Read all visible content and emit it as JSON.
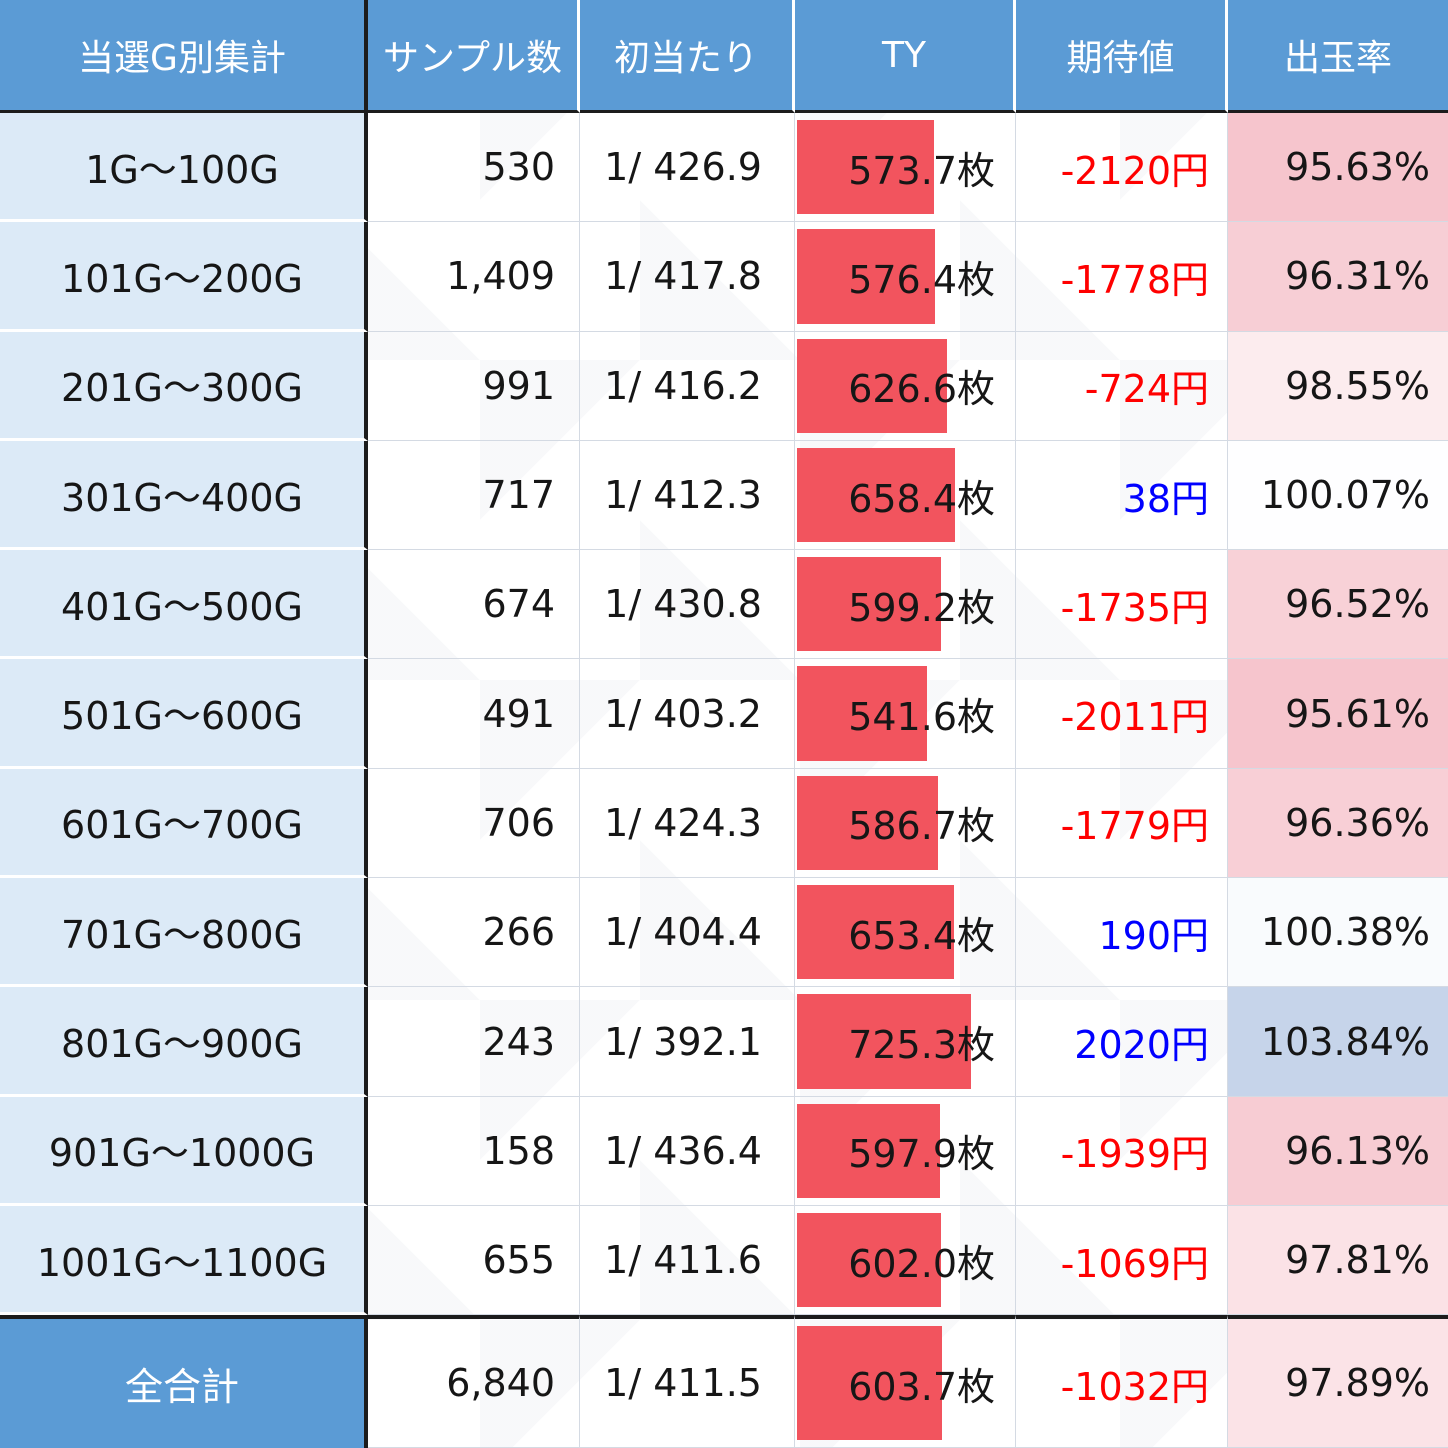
{
  "table": {
    "columns": [
      "当選G別集計",
      "サンプル数",
      "初当たり",
      "TY",
      "期待値",
      "出玉率"
    ],
    "rows": [
      {
        "label": "1G〜100G",
        "samples": "530",
        "first_hit": "1/ 426.9",
        "ty_value": 573.7,
        "ty_label": "573.7枚",
        "expectation": "-2120円",
        "payout_value": 95.63,
        "payout_label": "95.63%"
      },
      {
        "label": "101G〜200G",
        "samples": "1,409",
        "first_hit": "1/ 417.8",
        "ty_value": 576.4,
        "ty_label": "576.4枚",
        "expectation": "-1778円",
        "payout_value": 96.31,
        "payout_label": "96.31%"
      },
      {
        "label": "201G〜300G",
        "samples": "991",
        "first_hit": "1/ 416.2",
        "ty_value": 626.6,
        "ty_label": "626.6枚",
        "expectation": "-724円",
        "payout_value": 98.55,
        "payout_label": "98.55%"
      },
      {
        "label": "301G〜400G",
        "samples": "717",
        "first_hit": "1/ 412.3",
        "ty_value": 658.4,
        "ty_label": "658.4枚",
        "expectation": "38円",
        "payout_value": 100.07,
        "payout_label": "100.07%"
      },
      {
        "label": "401G〜500G",
        "samples": "674",
        "first_hit": "1/ 430.8",
        "ty_value": 599.2,
        "ty_label": "599.2枚",
        "expectation": "-1735円",
        "payout_value": 96.52,
        "payout_label": "96.52%"
      },
      {
        "label": "501G〜600G",
        "samples": "491",
        "first_hit": "1/ 403.2",
        "ty_value": 541.6,
        "ty_label": "541.6枚",
        "expectation": "-2011円",
        "payout_value": 95.61,
        "payout_label": "95.61%"
      },
      {
        "label": "601G〜700G",
        "samples": "706",
        "first_hit": "1/ 424.3",
        "ty_value": 586.7,
        "ty_label": "586.7枚",
        "expectation": "-1779円",
        "payout_value": 96.36,
        "payout_label": "96.36%"
      },
      {
        "label": "701G〜800G",
        "samples": "266",
        "first_hit": "1/ 404.4",
        "ty_value": 653.4,
        "ty_label": "653.4枚",
        "expectation": "190円",
        "payout_value": 100.38,
        "payout_label": "100.38%"
      },
      {
        "label": "801G〜900G",
        "samples": "243",
        "first_hit": "1/ 392.1",
        "ty_value": 725.3,
        "ty_label": "725.3枚",
        "expectation": "2020円",
        "payout_value": 103.84,
        "payout_label": "103.84%"
      },
      {
        "label": "901G〜1000G",
        "samples": "158",
        "first_hit": "1/ 436.4",
        "ty_value": 597.9,
        "ty_label": "597.9枚",
        "expectation": "-1939円",
        "payout_value": 96.13,
        "payout_label": "96.13%"
      },
      {
        "label": "1001G〜1100G",
        "samples": "655",
        "first_hit": "1/ 411.6",
        "ty_value": 602.0,
        "ty_label": "602.0枚",
        "expectation": "-1069円",
        "payout_value": 97.81,
        "payout_label": "97.81%"
      }
    ],
    "total": {
      "label": "全合計",
      "samples": "6,840",
      "first_hit": "1/ 411.5",
      "ty_value": 603.7,
      "ty_label": "603.7枚",
      "expectation": "-1032円",
      "payout_value": 97.89,
      "payout_label": "97.89%"
    },
    "ty_bar": {
      "max_value": 725.3,
      "max_width_percent": 79
    },
    "payout_scale": {
      "min": 95.61,
      "mid": 100,
      "max": 103.84
    }
  },
  "colors": {
    "header_bg": "#5b9bd5",
    "header_text": "#ffffff",
    "label_bg": "#dceaf7",
    "bar": "#f2545e",
    "negative_text": "#ff0000",
    "positive_text": "#0000ff",
    "payout_low_bg": "#f6c5cd",
    "payout_high_bg": "#c6d4ea",
    "grid_line": "#d4dae3",
    "frame_line": "#1c1c1c"
  },
  "chart_data": {
    "type": "table",
    "columns": [
      "当選G別集計",
      "サンプル数",
      "初当たり",
      "TY",
      "期待値",
      "出玉率"
    ],
    "rows": [
      [
        "1G〜100G",
        "530",
        "1/ 426.9",
        "573.7枚",
        "-2120円",
        "95.63%"
      ],
      [
        "101G〜200G",
        "1,409",
        "1/ 417.8",
        "576.4枚",
        "-1778円",
        "96.31%"
      ],
      [
        "201G〜300G",
        "991",
        "1/ 416.2",
        "626.6枚",
        "-724円",
        "98.55%"
      ],
      [
        "301G〜400G",
        "717",
        "1/ 412.3",
        "658.4枚",
        "38円",
        "100.07%"
      ],
      [
        "401G〜500G",
        "674",
        "1/ 430.8",
        "599.2枚",
        "-1735円",
        "96.52%"
      ],
      [
        "501G〜600G",
        "491",
        "1/ 403.2",
        "541.6枚",
        "-2011円",
        "95.61%"
      ],
      [
        "601G〜700G",
        "706",
        "1/ 424.3",
        "586.7枚",
        "-1779円",
        "96.36%"
      ],
      [
        "701G〜800G",
        "266",
        "1/ 404.4",
        "653.4枚",
        "190円",
        "100.38%"
      ],
      [
        "801G〜900G",
        "243",
        "1/ 392.1",
        "725.3枚",
        "2020円",
        "103.84%"
      ],
      [
        "901G〜1000G",
        "158",
        "1/ 436.4",
        "597.9枚",
        "-1939円",
        "96.13%"
      ],
      [
        "1001G〜1100G",
        "655",
        "1/ 411.6",
        "602.0枚",
        "-1069円",
        "97.81%"
      ],
      [
        "全合計",
        "6,840",
        "1/ 411.5",
        "603.7枚",
        "-1032円",
        "97.89%"
      ]
    ],
    "notes": "TY column has red data bars proportional to value; 期待値 negative=red / positive=blue; 出玉率 cell background is a color scale (pink below 100%, blue above 100%)."
  }
}
